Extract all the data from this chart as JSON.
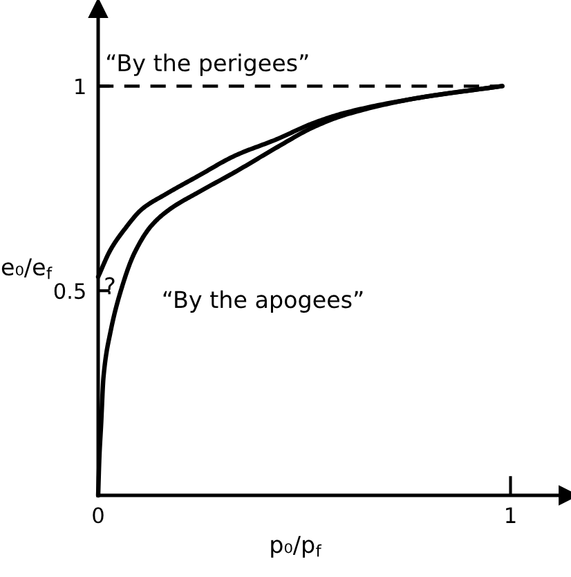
{
  "chart_data": {
    "type": "line",
    "xlabel": "p₀/p$_{f}$",
    "ylabel": "e₀/e$_{f}$",
    "xlim": [
      0,
      1.14
    ],
    "ylim": [
      0,
      1.19
    ],
    "xticks": [
      {
        "value": 0,
        "label": "0"
      },
      1
    ],
    "yticks": [
      0.5,
      1
    ],
    "marker": "none",
    "series": [
      {
        "color": "#000000",
        "x": [
          0,
          0.03,
          0.064,
          0.107,
          0.164,
          0.242,
          0.332,
          0.433,
          0.523,
          0.6,
          0.77,
          0.98
        ],
        "values": [
          0.534,
          0.6,
          0.65,
          0.7,
          0.736,
          0.78,
          0.83,
          0.87,
          0.91,
          0.935,
          0.97,
          1.0
        ]
      },
      {
        "color": "#000000",
        "x": [
          0,
          0.003,
          0.007,
          0.013,
          0.03,
          0.055,
          0.087,
          0.13,
          0.175,
          0.242,
          0.332,
          0.433,
          0.523,
          0.6,
          0.77,
          0.98
        ],
        "values": [
          0,
          0.095,
          0.17,
          0.29,
          0.4,
          0.5,
          0.59,
          0.66,
          0.7,
          0.74,
          0.79,
          0.85,
          0.9,
          0.93,
          0.97,
          1.0
        ]
      },
      {
        "color": "#000000",
        "line_style": "dashed",
        "x": [
          0,
          0.98
        ],
        "values": [
          1,
          1
        ]
      }
    ],
    "annotations": [
      "“By the perigees”",
      "“By the apogees”",
      "?"
    ]
  }
}
